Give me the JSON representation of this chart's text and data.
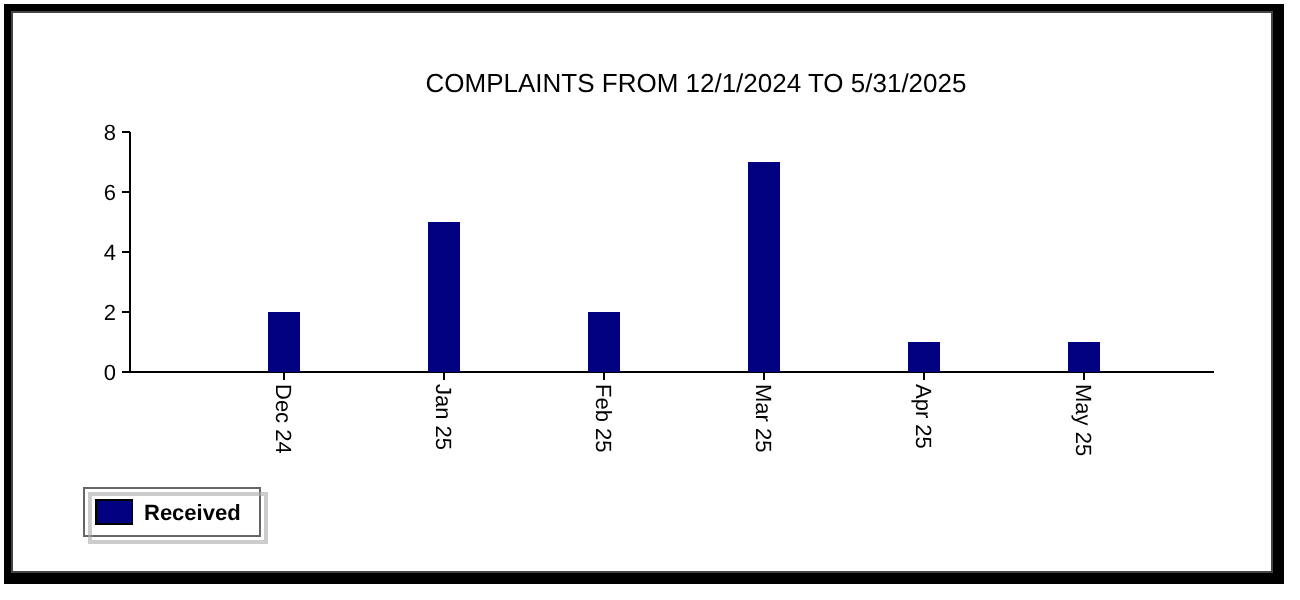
{
  "chart_data": {
    "type": "bar",
    "title": "COMPLAINTS FROM 12/1/2024 TO 5/31/2025",
    "categories": [
      "Dec 24",
      "Jan 25",
      "Feb 25",
      "Mar 25",
      "Apr 25",
      "May 25"
    ],
    "series": [
      {
        "name": "Received",
        "color": "#000080",
        "values": [
          2,
          5,
          2,
          7,
          1,
          1
        ]
      }
    ],
    "ylim": [
      0,
      8
    ],
    "yticks": [
      0,
      2,
      4,
      6,
      8
    ],
    "grid": false,
    "legend": "bottom left"
  }
}
